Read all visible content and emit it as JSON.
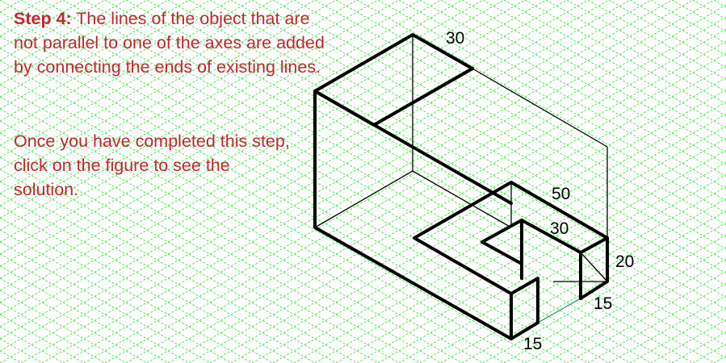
{
  "instruction": {
    "step_label": "Step 4:",
    "step_body": " The lines of the object that are not parallel to one of the axes are added by connecting the ends of existing lines.",
    "prompt": "Once you have completed this step, click on the figure to see the solution."
  },
  "dimensions": {
    "top": "30",
    "inner_length": "50",
    "notch_depth": "30",
    "height": "20",
    "notch_width": "15",
    "base_width": "15"
  },
  "colors": {
    "grid": "#39e039",
    "text": "#c0282e",
    "bold_line": "#000000",
    "thin_line": "#000000",
    "accent_line": "#2aa36a"
  }
}
